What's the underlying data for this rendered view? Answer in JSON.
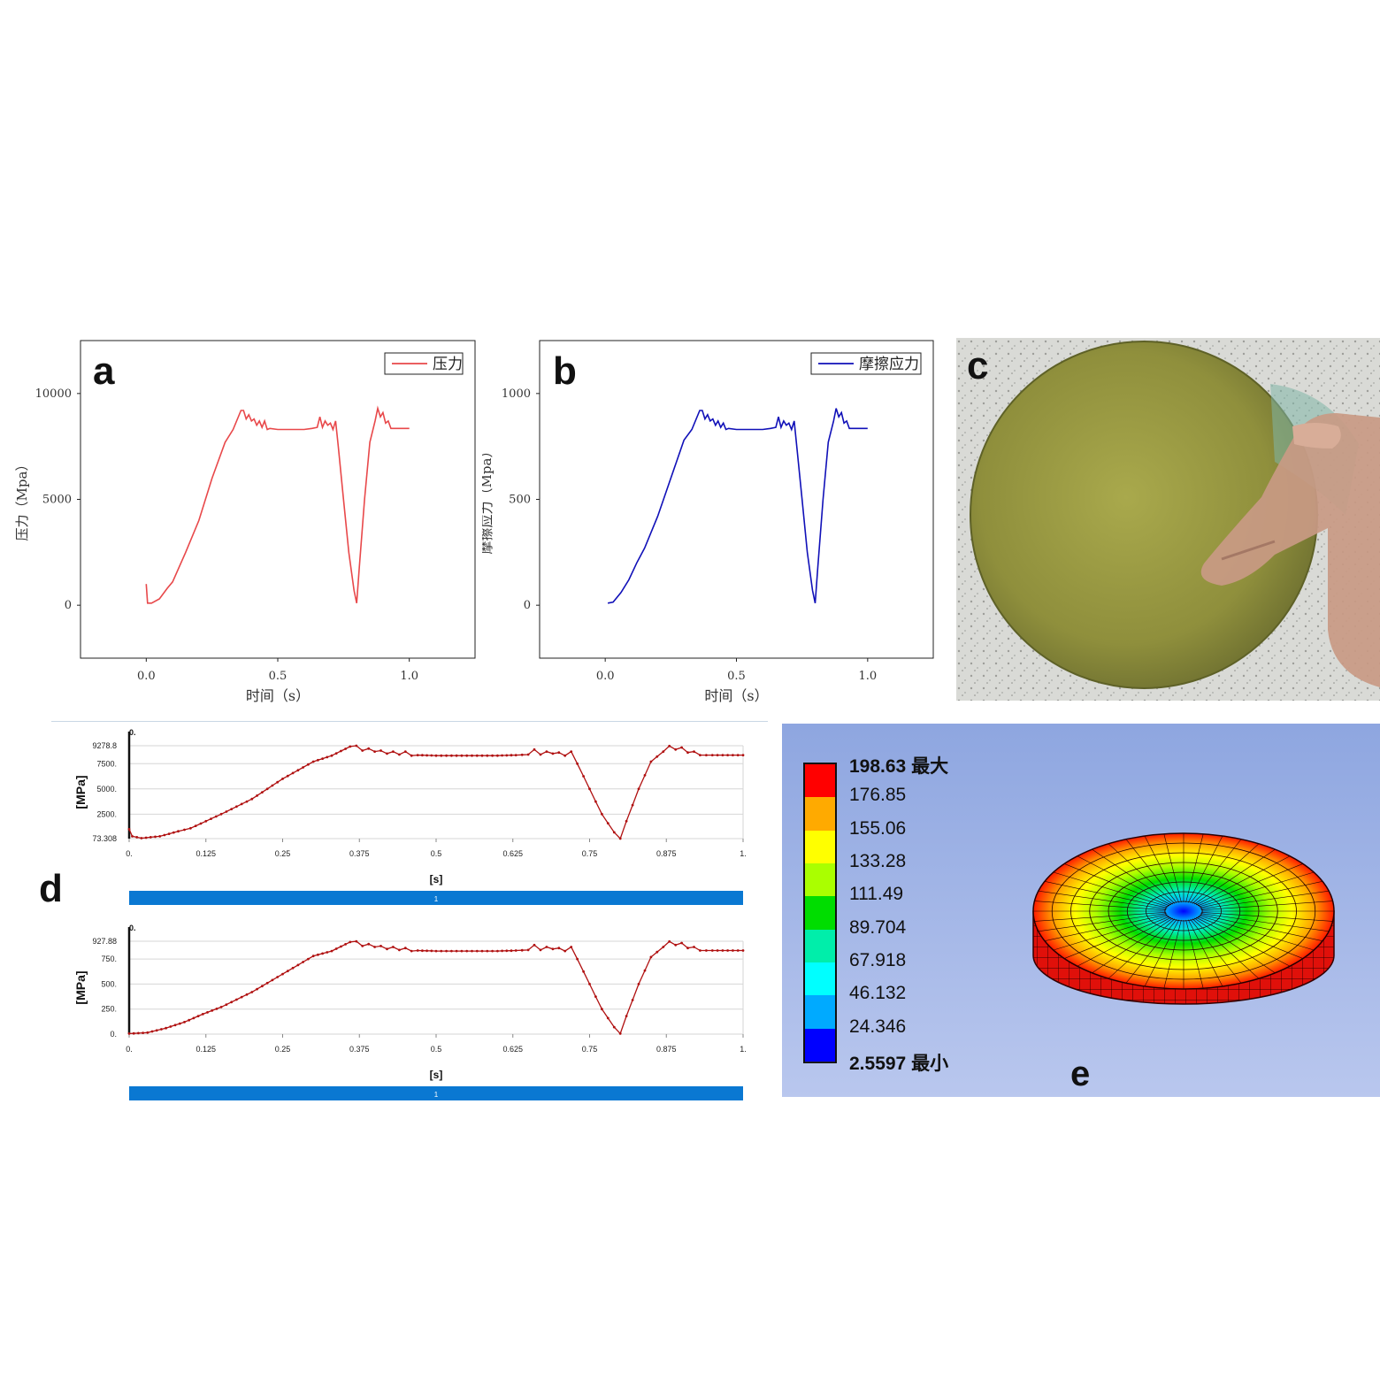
{
  "panels": {
    "a": {
      "letter": "a"
    },
    "b": {
      "letter": "b"
    },
    "c": {
      "letter": "c"
    },
    "d": {
      "letter": "d"
    },
    "e": {
      "letter": "e"
    }
  },
  "chart_data": [
    {
      "id": "a",
      "type": "line",
      "xlabel": "时间（s）",
      "ylabel": "压力（Mpa）",
      "xlim": [
        -0.25,
        1.25
      ],
      "ylim": [
        -2500,
        12500
      ],
      "xticks": [
        0.0,
        0.5,
        1.0
      ],
      "xtick_labels": [
        "0.0",
        "0.5",
        "1.0"
      ],
      "yticks": [
        0,
        5000,
        10000
      ],
      "ytick_labels": [
        "0",
        "5000",
        "10000"
      ],
      "legend": "top-right",
      "color": "#e8484a",
      "series": [
        {
          "name": "压力",
          "x": [
            0.0,
            0.005,
            0.02,
            0.05,
            0.08,
            0.1,
            0.15,
            0.2,
            0.25,
            0.3,
            0.33,
            0.36,
            0.37,
            0.38,
            0.39,
            0.4,
            0.41,
            0.42,
            0.43,
            0.44,
            0.45,
            0.46,
            0.47,
            0.5,
            0.55,
            0.6,
            0.63,
            0.65,
            0.66,
            0.67,
            0.68,
            0.69,
            0.7,
            0.71,
            0.72,
            0.73,
            0.75,
            0.77,
            0.79,
            0.8,
            0.81,
            0.83,
            0.85,
            0.87,
            0.88,
            0.89,
            0.9,
            0.91,
            0.92,
            0.93,
            0.95,
            1.0
          ],
          "y": [
            1000,
            100,
            100,
            300,
            800,
            1100,
            2500,
            4000,
            6000,
            7700,
            8300,
            9200,
            9200,
            8800,
            9000,
            8700,
            8800,
            8500,
            8700,
            8400,
            8700,
            8300,
            8350,
            8300,
            8300,
            8300,
            8350,
            8400,
            8900,
            8400,
            8700,
            8500,
            8600,
            8300,
            8700,
            7500,
            5000,
            2500,
            700,
            100,
            1800,
            5000,
            7700,
            8700,
            9300,
            8900,
            9100,
            8600,
            8700,
            8350,
            8350,
            8350
          ]
        }
      ]
    },
    {
      "id": "b",
      "type": "line",
      "xlabel": "时间（s）",
      "ylabel": "摩擦应力（Mpa）",
      "xlim": [
        -0.25,
        1.25
      ],
      "ylim": [
        -250,
        1250
      ],
      "xticks": [
        0.0,
        0.5,
        1.0
      ],
      "xtick_labels": [
        "0.0",
        "0.5",
        "1.0"
      ],
      "yticks": [
        0,
        500,
        1000
      ],
      "ytick_labels": [
        "0",
        "500",
        "1000"
      ],
      "legend": "top-right",
      "color": "#1010b8",
      "series": [
        {
          "name": "摩擦应力",
          "x": [
            0.01,
            0.03,
            0.06,
            0.09,
            0.12,
            0.15,
            0.2,
            0.25,
            0.3,
            0.33,
            0.36,
            0.37,
            0.38,
            0.39,
            0.4,
            0.41,
            0.42,
            0.43,
            0.44,
            0.45,
            0.46,
            0.47,
            0.5,
            0.55,
            0.6,
            0.63,
            0.65,
            0.66,
            0.67,
            0.68,
            0.69,
            0.7,
            0.71,
            0.72,
            0.73,
            0.75,
            0.77,
            0.79,
            0.8,
            0.81,
            0.83,
            0.85,
            0.87,
            0.88,
            0.89,
            0.9,
            0.91,
            0.92,
            0.93,
            0.95,
            1.0
          ],
          "y": [
            10,
            15,
            60,
            120,
            200,
            270,
            420,
            600,
            780,
            830,
            920,
            920,
            880,
            900,
            870,
            880,
            850,
            870,
            840,
            860,
            830,
            835,
            830,
            830,
            830,
            835,
            840,
            890,
            840,
            870,
            850,
            860,
            830,
            870,
            750,
            500,
            250,
            70,
            10,
            180,
            500,
            770,
            870,
            930,
            890,
            910,
            860,
            870,
            835,
            835,
            835
          ]
        }
      ]
    },
    {
      "id": "d1",
      "type": "line",
      "xlabel": "[s]",
      "ylabel": "[MPa]",
      "title": "0.",
      "xlim": [
        0,
        1
      ],
      "ylim": [
        73.308,
        9278.8
      ],
      "xticks": [
        0,
        0.125,
        0.25,
        0.375,
        0.5,
        0.625,
        0.75,
        0.875,
        1
      ],
      "xtick_labels": [
        "0.",
        "0.125",
        "0.25",
        "0.375",
        "0.5",
        "0.625",
        "0.75",
        "0.875",
        "1."
      ],
      "yticks": [
        73.308,
        2500,
        5000,
        7500,
        9278.8
      ],
      "ytick_labels": [
        "73.308",
        "2500.",
        "5000.",
        "7500.",
        "9278.8"
      ],
      "color": "#b01010",
      "timeline_label": "1",
      "series": [
        {
          "x": [
            0,
            0.005,
            0.02,
            0.05,
            0.08,
            0.1,
            0.15,
            0.2,
            0.25,
            0.3,
            0.33,
            0.36,
            0.37,
            0.38,
            0.39,
            0.4,
            0.41,
            0.42,
            0.43,
            0.44,
            0.45,
            0.46,
            0.47,
            0.5,
            0.55,
            0.6,
            0.63,
            0.65,
            0.66,
            0.67,
            0.68,
            0.69,
            0.7,
            0.71,
            0.72,
            0.73,
            0.75,
            0.77,
            0.79,
            0.8,
            0.81,
            0.83,
            0.85,
            0.87,
            0.88,
            0.89,
            0.9,
            0.91,
            0.92,
            0.93,
            0.95,
            1.0
          ],
          "y": [
            1000,
            300,
            120,
            300,
            800,
            1100,
            2500,
            4000,
            6000,
            7700,
            8300,
            9200,
            9278,
            8800,
            9000,
            8700,
            8800,
            8500,
            8700,
            8400,
            8700,
            8300,
            8350,
            8300,
            8300,
            8300,
            8350,
            8400,
            8900,
            8400,
            8700,
            8500,
            8600,
            8300,
            8700,
            7500,
            5000,
            2500,
            700,
            73,
            1800,
            5000,
            7700,
            8700,
            9250,
            8900,
            9100,
            8600,
            8700,
            8350,
            8350,
            8350
          ]
        }
      ]
    },
    {
      "id": "d2",
      "type": "line",
      "xlabel": "[s]",
      "ylabel": "[MPa]",
      "title": "0.",
      "xlim": [
        0,
        1
      ],
      "ylim": [
        0,
        927.88
      ],
      "xticks": [
        0,
        0.125,
        0.25,
        0.375,
        0.5,
        0.625,
        0.75,
        0.875,
        1
      ],
      "xtick_labels": [
        "0.",
        "0.125",
        "0.25",
        "0.375",
        "0.5",
        "0.625",
        "0.75",
        "0.875",
        "1."
      ],
      "yticks": [
        0,
        250,
        500,
        750,
        927.88
      ],
      "ytick_labels": [
        "0.",
        "250.",
        "500.",
        "750.",
        "927.88"
      ],
      "color": "#b01010",
      "timeline_label": "1",
      "series": [
        {
          "x": [
            0,
            0.03,
            0.06,
            0.09,
            0.12,
            0.15,
            0.2,
            0.25,
            0.3,
            0.33,
            0.36,
            0.37,
            0.38,
            0.39,
            0.4,
            0.41,
            0.42,
            0.43,
            0.44,
            0.45,
            0.46,
            0.47,
            0.5,
            0.55,
            0.6,
            0.63,
            0.65,
            0.66,
            0.67,
            0.68,
            0.69,
            0.7,
            0.71,
            0.72,
            0.73,
            0.75,
            0.77,
            0.79,
            0.8,
            0.81,
            0.83,
            0.85,
            0.87,
            0.88,
            0.89,
            0.9,
            0.91,
            0.92,
            0.93,
            0.95,
            1.0
          ],
          "y": [
            5,
            15,
            60,
            120,
            200,
            270,
            420,
            600,
            780,
            830,
            920,
            927,
            880,
            900,
            870,
            880,
            850,
            870,
            840,
            860,
            830,
            835,
            830,
            830,
            830,
            835,
            840,
            890,
            840,
            870,
            850,
            860,
            830,
            870,
            750,
            500,
            250,
            70,
            5,
            180,
            500,
            770,
            870,
            925,
            890,
            910,
            860,
            870,
            835,
            835,
            835
          ]
        }
      ]
    }
  ],
  "legend_e": {
    "values": [
      "198.63 最大",
      "176.85",
      "155.06",
      "133.28",
      "111.49",
      "89.704",
      "67.918",
      "46.132",
      "24.346",
      "2.5597 最小"
    ],
    "colors": [
      "#ff0000",
      "#ffaa00",
      "#ffff00",
      "#aaff00",
      "#00dd00",
      "#00eeaa",
      "#00ffff",
      "#00aaff",
      "#0000ff"
    ]
  }
}
